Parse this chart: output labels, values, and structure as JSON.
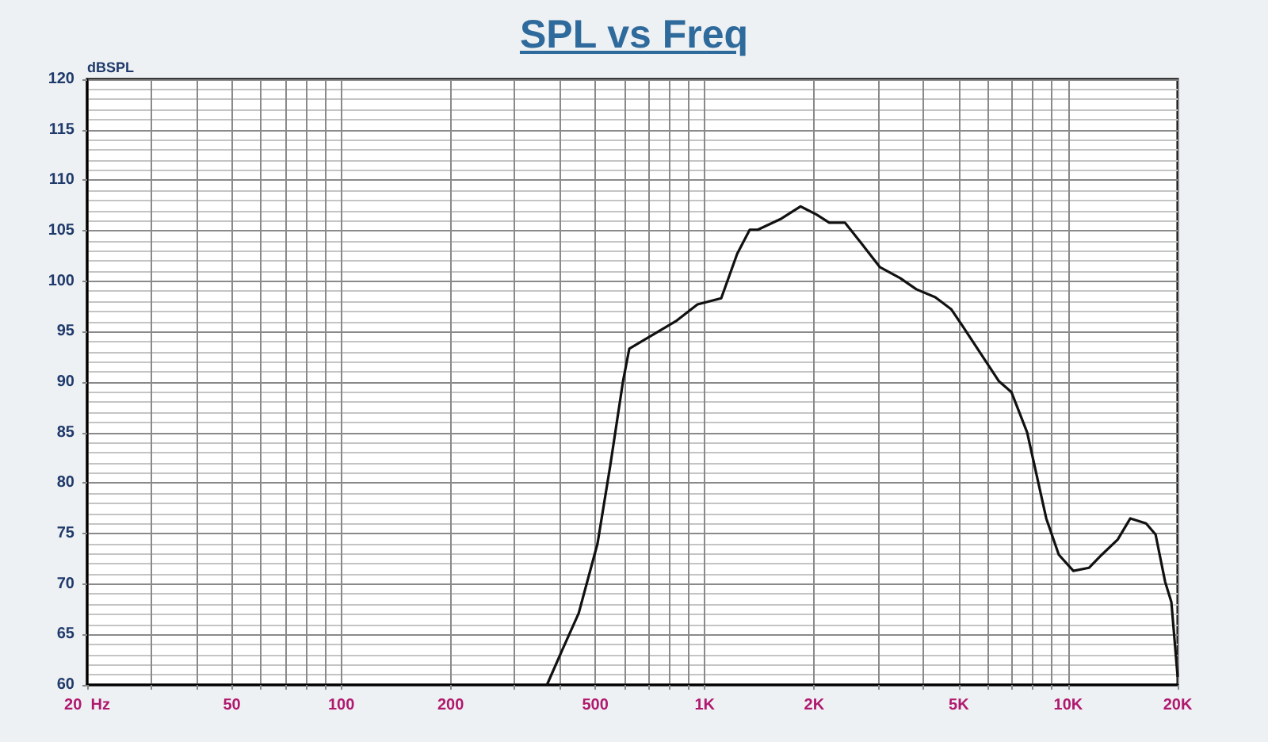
{
  "chart_data": {
    "type": "line",
    "title": "SPL vs Freq",
    "ylabel": "dBSPL",
    "log": "x",
    "grid": true,
    "marker": "none",
    "line_style": "solid",
    "xlim": [
      20,
      20000
    ],
    "ylim": [
      60,
      120
    ],
    "yticks": [
      60,
      65,
      70,
      75,
      80,
      85,
      90,
      95,
      100,
      105,
      110,
      115,
      120
    ],
    "xticks": [
      {
        "value": 20,
        "label": "20  Hz"
      },
      {
        "value": 30,
        "label": null
      },
      {
        "value": 40,
        "label": null
      },
      50,
      {
        "value": 60,
        "label": null
      },
      {
        "value": 70,
        "label": null
      },
      {
        "value": 80,
        "label": null
      },
      {
        "value": 90,
        "label": null
      },
      100,
      200,
      {
        "value": 300,
        "label": null
      },
      {
        "value": 400,
        "label": null
      },
      500,
      {
        "value": 600,
        "label": null
      },
      {
        "value": 700,
        "label": null
      },
      {
        "value": 800,
        "label": null
      },
      {
        "value": 900,
        "label": null
      },
      {
        "value": 1000,
        "label": "1K"
      },
      {
        "value": 2000,
        "label": "2K"
      },
      {
        "value": 3000,
        "label": null
      },
      {
        "value": 4000,
        "label": null
      },
      {
        "value": 5000,
        "label": "5K"
      },
      {
        "value": 6000,
        "label": null
      },
      {
        "value": 7000,
        "label": null
      },
      {
        "value": 8000,
        "label": null
      },
      {
        "value": 9000,
        "label": null
      },
      {
        "value": 10000,
        "label": "10K"
      },
      {
        "value": 20000,
        "label": "20K"
      }
    ],
    "series": [
      {
        "color": "#111111",
        "x": [
          368,
          406,
          450,
          507,
          550,
          596,
          620,
          838,
          955,
          1110,
          1228,
          1330,
          1400,
          1626,
          1835,
          2030,
          2200,
          2430,
          2690,
          3030,
          3450,
          3820,
          4310,
          4770,
          5110,
          6440,
          6980,
          7710,
          8700,
          9420,
          10330,
          11400,
          12370,
          13680,
          14820,
          16370,
          17390,
          18480,
          19220,
          20000
        ],
        "values": [
          60,
          63.5,
          67.1,
          74,
          81.8,
          90.1,
          93.3,
          96.1,
          97.7,
          98.3,
          102.7,
          105.1,
          105.1,
          106.2,
          107.4,
          106.6,
          105.8,
          105.8,
          103.8,
          101.4,
          100.3,
          99.2,
          98.4,
          97.2,
          95.6,
          90.1,
          89,
          85,
          76.5,
          72.9,
          71.3,
          71.6,
          72.9,
          74.4,
          76.5,
          76,
          74.9,
          70.2,
          68.2,
          60.8
        ]
      }
    ]
  }
}
